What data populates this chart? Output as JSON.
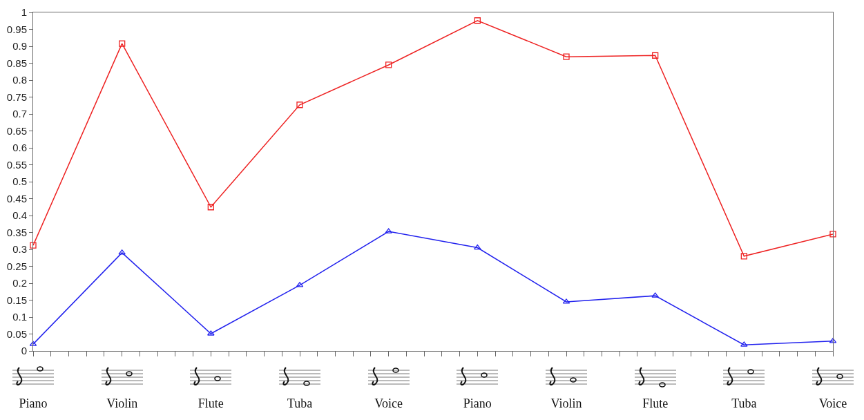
{
  "chart_data": {
    "type": "line",
    "categories": [
      "Piano",
      "Violin",
      "Flute",
      "Tuba",
      "Voice",
      "Piano",
      "Violin",
      "Flute",
      "Tuba",
      "Voice"
    ],
    "series": [
      {
        "color": "#ee2222",
        "marker": "square",
        "values": [
          0.312,
          0.908,
          0.425,
          0.727,
          0.845,
          0.976,
          0.869,
          0.873,
          0.28,
          0.345
        ]
      },
      {
        "color": "#2222ee",
        "marker": "triangle",
        "values": [
          0.02,
          0.29,
          0.051,
          0.194,
          0.353,
          0.305,
          0.145,
          0.163,
          0.018,
          0.029
        ]
      }
    ],
    "ylim": [
      0,
      1
    ],
    "yticks": [
      0,
      0.05,
      0.1,
      0.15,
      0.2,
      0.25,
      0.3,
      0.35,
      0.4,
      0.45,
      0.5,
      0.55,
      0.6,
      0.65,
      0.7,
      0.75,
      0.8,
      0.85,
      0.9,
      0.95,
      1
    ],
    "grid": false,
    "line_style": "solid"
  }
}
